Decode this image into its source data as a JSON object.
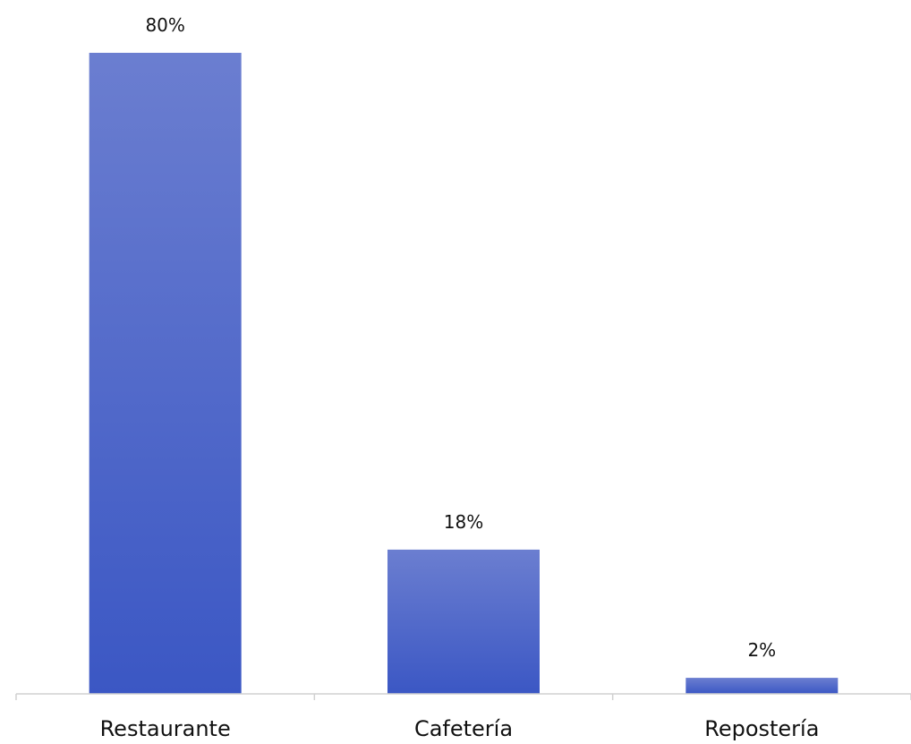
{
  "chart_data": {
    "type": "bar",
    "categories": [
      "Restaurante",
      "Cafetería",
      "Repostería"
    ],
    "values": [
      80,
      18,
      2
    ],
    "value_labels": [
      "80%",
      "18%",
      "2%"
    ],
    "title": "",
    "xlabel": "",
    "ylabel": "",
    "ylim": [
      0,
      80
    ],
    "grid": false,
    "legend": "none",
    "bar_color_top": "#6b7ed0",
    "bar_color_bottom": "#3b57c4",
    "axis_color": "#d0d0d0"
  }
}
